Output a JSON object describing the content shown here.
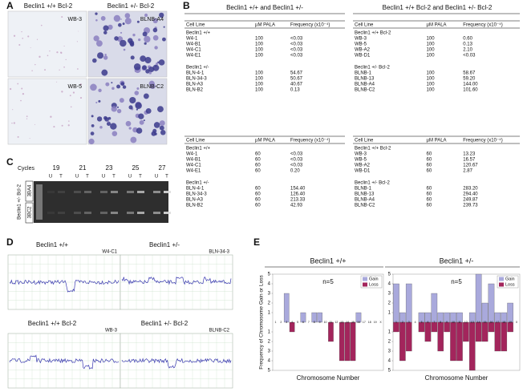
{
  "panel_labels": [
    "A",
    "B",
    "C",
    "D",
    "E"
  ],
  "panel_a": {
    "columns": [
      "Beclin1 +/+ Bcl-2",
      "Beclin1 +/- Bcl-2"
    ],
    "images": [
      "WB-3",
      "BLNB-A4",
      "WB-5",
      "BLNB-C2"
    ]
  },
  "panel_b": {
    "headers": [
      "Beclin1 +/+  and Beclin1 +/-",
      "Beclin1 +/+ Bcl-2 and Beclin1 +/-  Bcl-2"
    ],
    "column_headers": [
      "Cell Line",
      "µM PALA",
      "Frequency (x10⁻⁴)"
    ],
    "tables": [
      {
        "blocks": [
          {
            "groups": [
              {
                "label": "Beclin1 +/+",
                "rows": [
                  [
                    "W4-1",
                    "100",
                    "<0.03"
                  ],
                  [
                    "W4-B1",
                    "100",
                    "<0.03"
                  ],
                  [
                    "W4-C1",
                    "100",
                    "<0.03"
                  ],
                  [
                    "W4-E1",
                    "100",
                    "<0.03"
                  ]
                ]
              },
              {
                "label": "Beclin1 +/-",
                "rows": [
                  [
                    "BLN-4-1",
                    "100",
                    "54.67"
                  ],
                  [
                    "BLN-34-3",
                    "100",
                    "50.67"
                  ],
                  [
                    "BLN-A3",
                    "100",
                    "40.67"
                  ],
                  [
                    "BLN-B2",
                    "100",
                    "0.13"
                  ]
                ]
              }
            ]
          },
          {
            "groups": [
              {
                "label": "Beclin1 +/+",
                "rows": [
                  [
                    "W4-1",
                    "60",
                    "<0.03"
                  ],
                  [
                    "W4-B1",
                    "60",
                    "<0.03"
                  ],
                  [
                    "W4-C1",
                    "60",
                    "<0.03"
                  ],
                  [
                    "W4-E1",
                    "60",
                    "0.20"
                  ]
                ]
              },
              {
                "label": "Beclin1 +/-",
                "rows": [
                  [
                    "BLN-4-1",
                    "60",
                    "154.40"
                  ],
                  [
                    "BLN-34-3",
                    "60",
                    "126.40"
                  ],
                  [
                    "BLN-A3",
                    "60",
                    "213.33"
                  ],
                  [
                    "BLN-B2",
                    "60",
                    "42.93"
                  ]
                ]
              }
            ]
          }
        ]
      },
      {
        "blocks": [
          {
            "groups": [
              {
                "label": "Beclin1 +/+ Bcl-2",
                "rows": [
                  [
                    "WB-3",
                    "100",
                    "0.60"
                  ],
                  [
                    "WB-5",
                    "100",
                    "0.13"
                  ],
                  [
                    "WB-A2",
                    "100",
                    "2.10"
                  ],
                  [
                    "WB-D1",
                    "100",
                    "<0.03"
                  ]
                ]
              },
              {
                "label": "Beclin1 +/- Bcl-2",
                "rows": [
                  [
                    "BLNB-1",
                    "100",
                    "58.67"
                  ],
                  [
                    "BLNB-13",
                    "100",
                    "59.20"
                  ],
                  [
                    "BLNB-A4",
                    "100",
                    "144.00"
                  ],
                  [
                    "BLNB-C2",
                    "100",
                    "101.60"
                  ]
                ]
              }
            ]
          },
          {
            "groups": [
              {
                "label": "Beclin1 +/+ Bcl-2",
                "rows": [
                  [
                    "WB-3",
                    "60",
                    "13.23"
                  ],
                  [
                    "WB-5",
                    "60",
                    "16.57"
                  ],
                  [
                    "WB-A2",
                    "60",
                    "120.67"
                  ],
                  [
                    "WB-D1",
                    "60",
                    "2.87"
                  ]
                ]
              },
              {
                "label": "Beclin1 +/- Bcl-2",
                "rows": [
                  [
                    "BLNB-1",
                    "60",
                    "283.20"
                  ],
                  [
                    "BLNB-13",
                    "60",
                    "294.40"
                  ],
                  [
                    "BLNB-A4",
                    "60",
                    "249.87"
                  ],
                  [
                    "BLNB-C2",
                    "60",
                    "239.73"
                  ]
                ]
              }
            ]
          }
        ]
      }
    ]
  },
  "panel_c": {
    "label": "Cycles",
    "cycles": [
      19,
      21,
      23,
      25,
      27
    ],
    "lanes": [
      "U",
      "T",
      "U",
      "T",
      "U",
      "T",
      "U",
      "T",
      "U",
      "T"
    ],
    "sample": "Beclin1 +/- Bcl-2",
    "rows": [
      "3BA4",
      "3BC2"
    ]
  },
  "panel_d": {
    "plots": [
      {
        "title": "Beclin1 +/+",
        "sample": "W4-C1"
      },
      {
        "title": "Beclin1 +/-",
        "sample": "BLN-34-3"
      },
      {
        "title": "Beclin1 +/+ Bcl-2",
        "sample": "WB-3"
      },
      {
        "title": "Beclin1 +/- Bcl-2",
        "sample": "BLNB-C2"
      }
    ]
  },
  "panel_e": {
    "type": "bar",
    "y_label": "Frequency of Chromosome Gain or Loss",
    "x_label": "Chromosome Number",
    "categories": [
      "1",
      "2",
      "3",
      "4",
      "5",
      "6",
      "7",
      "8",
      "9",
      "10",
      "11",
      "12",
      "13",
      "14",
      "15",
      "16",
      "17",
      "18",
      "19",
      "X"
    ],
    "ylim": [
      -5,
      5
    ],
    "yticks": [
      {
        "value": 5,
        "label": "5"
      },
      {
        "value": 4,
        "label": "4"
      },
      {
        "value": 3,
        "label": "3"
      },
      {
        "value": 2,
        "label": "2"
      },
      {
        "value": 1,
        "label": "1"
      },
      {
        "value": -1,
        "label": "1"
      },
      {
        "value": -2,
        "label": "2"
      },
      {
        "value": -3,
        "label": "3"
      },
      {
        "value": -4,
        "label": "4"
      },
      {
        "value": -5,
        "label": "5"
      }
    ],
    "legend": "upper right",
    "charts": [
      {
        "title": "Beclin1 +/+",
        "annotation": "n=5",
        "series": [
          {
            "name": "Gain",
            "color": "#a9a9dc",
            "values": [
              0,
              0,
              3,
              0,
              0,
              1,
              0,
              1,
              1,
              0,
              0,
              0,
              0,
              0,
              0,
              1,
              0,
              0,
              0,
              0
            ]
          },
          {
            "name": "Loss",
            "color": "#a3255c",
            "values": [
              0,
              0,
              0,
              -1,
              0,
              0,
              0,
              0,
              0,
              0,
              -2,
              0,
              -4,
              -4,
              -4,
              0,
              0,
              0,
              0,
              0
            ]
          }
        ]
      },
      {
        "title": "Beclin1 +/-",
        "annotation": "n=5",
        "series": [
          {
            "name": "Gain",
            "color": "#a9a9dc",
            "values": [
              4,
              1,
              4,
              0,
              1,
              1,
              3,
              1,
              1,
              1,
              1,
              0,
              1,
              5,
              2,
              4,
              1,
              1,
              2,
              0
            ]
          },
          {
            "name": "Loss",
            "color": "#a3255c",
            "values": [
              -1,
              -4,
              -3,
              0,
              -1,
              -2,
              -1,
              -3,
              -1,
              -4,
              -4,
              -2,
              -5,
              -2,
              -2,
              -1,
              -3,
              -3,
              -1,
              0
            ]
          }
        ]
      }
    ]
  }
}
